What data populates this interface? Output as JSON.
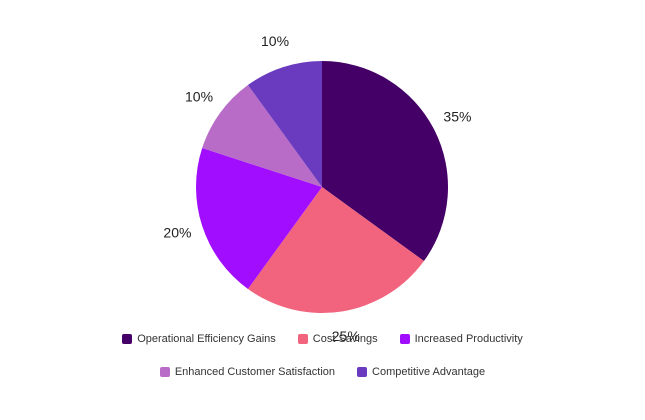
{
  "chart_data": {
    "type": "pie",
    "start_angle_deg": 0,
    "direction": "clockwise",
    "legend_position": "bottom",
    "slices": [
      {
        "label": "Operational Efficiency Gains",
        "value": 35,
        "display": "35%",
        "color": "#440066"
      },
      {
        "label": "Cost Savings",
        "value": 25,
        "display": "25%",
        "color": "#F2647E"
      },
      {
        "label": "Increased Productivity",
        "value": 20,
        "display": "20%",
        "color": "#A10DFF"
      },
      {
        "label": "Enhanced Customer Satisfaction",
        "value": 10,
        "display": "10%",
        "color": "#B86CC8"
      },
      {
        "label": "Competitive Advantage",
        "value": 10,
        "display": "10%",
        "color": "#6A3BBF"
      }
    ]
  }
}
